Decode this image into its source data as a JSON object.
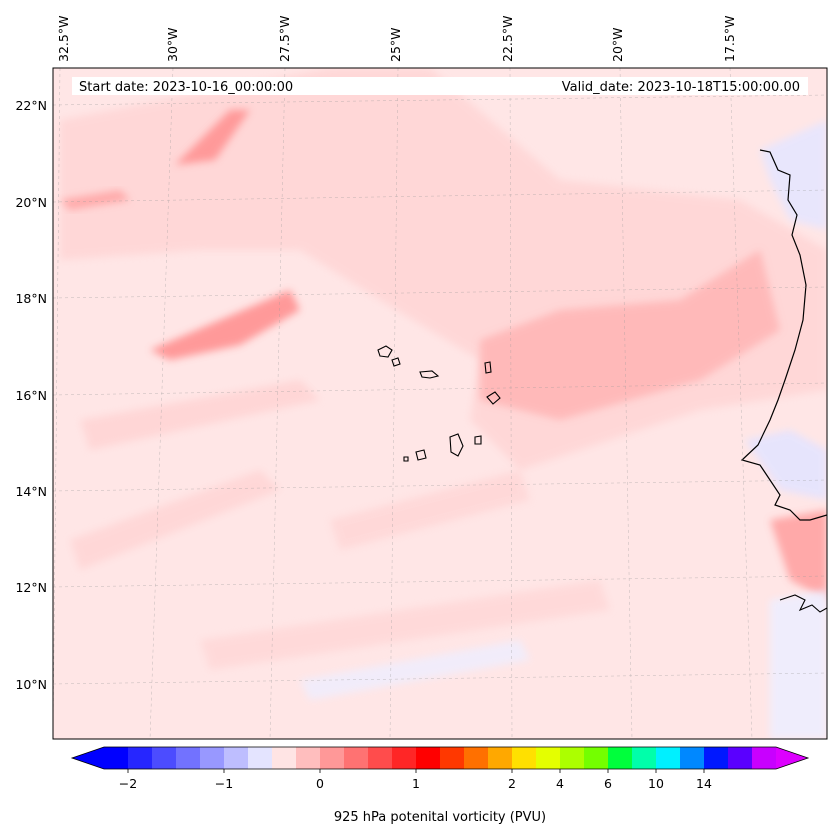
{
  "map": {
    "start_date": "Start date: 2023-10-16_00:00:00",
    "valid_date": "Valid_date: 2023-10-18T15:00:00.00",
    "lon_labels": [
      "32.5°W",
      "30°W",
      "27.5°W",
      "25°W",
      "22.5°W",
      "20°W",
      "17.5°W"
    ],
    "lat_labels": [
      "22°N",
      "20°N",
      "18°N",
      "16°N",
      "14°N",
      "12°N",
      "10°N"
    ],
    "gridlines": "on"
  },
  "colorbar": {
    "tick_labels": [
      "−2",
      "−1",
      "0",
      "1",
      "2",
      "4",
      "6",
      "10",
      "14"
    ],
    "label": "925 hPa potenital vorticity (PVU)",
    "colors": [
      "#0000ff",
      "#2626ff",
      "#4c4cff",
      "#7272ff",
      "#9898ff",
      "#bebeff",
      "#e4e4ff",
      "#ffe4e4",
      "#ffbebe",
      "#ff9898",
      "#ff7272",
      "#ff4c4c",
      "#ff2626",
      "#ff0000",
      "#ff3800",
      "#ff7000",
      "#ffa800",
      "#ffe000",
      "#e4ff00",
      "#acff00",
      "#74ff00",
      "#00ff3c",
      "#00ffaa",
      "#00f0ff",
      "#0088ff",
      "#0018ff",
      "#5a00ff",
      "#c800ff"
    ],
    "extend_low": "#0000ff",
    "extend_high": "#dd00ff"
  }
}
